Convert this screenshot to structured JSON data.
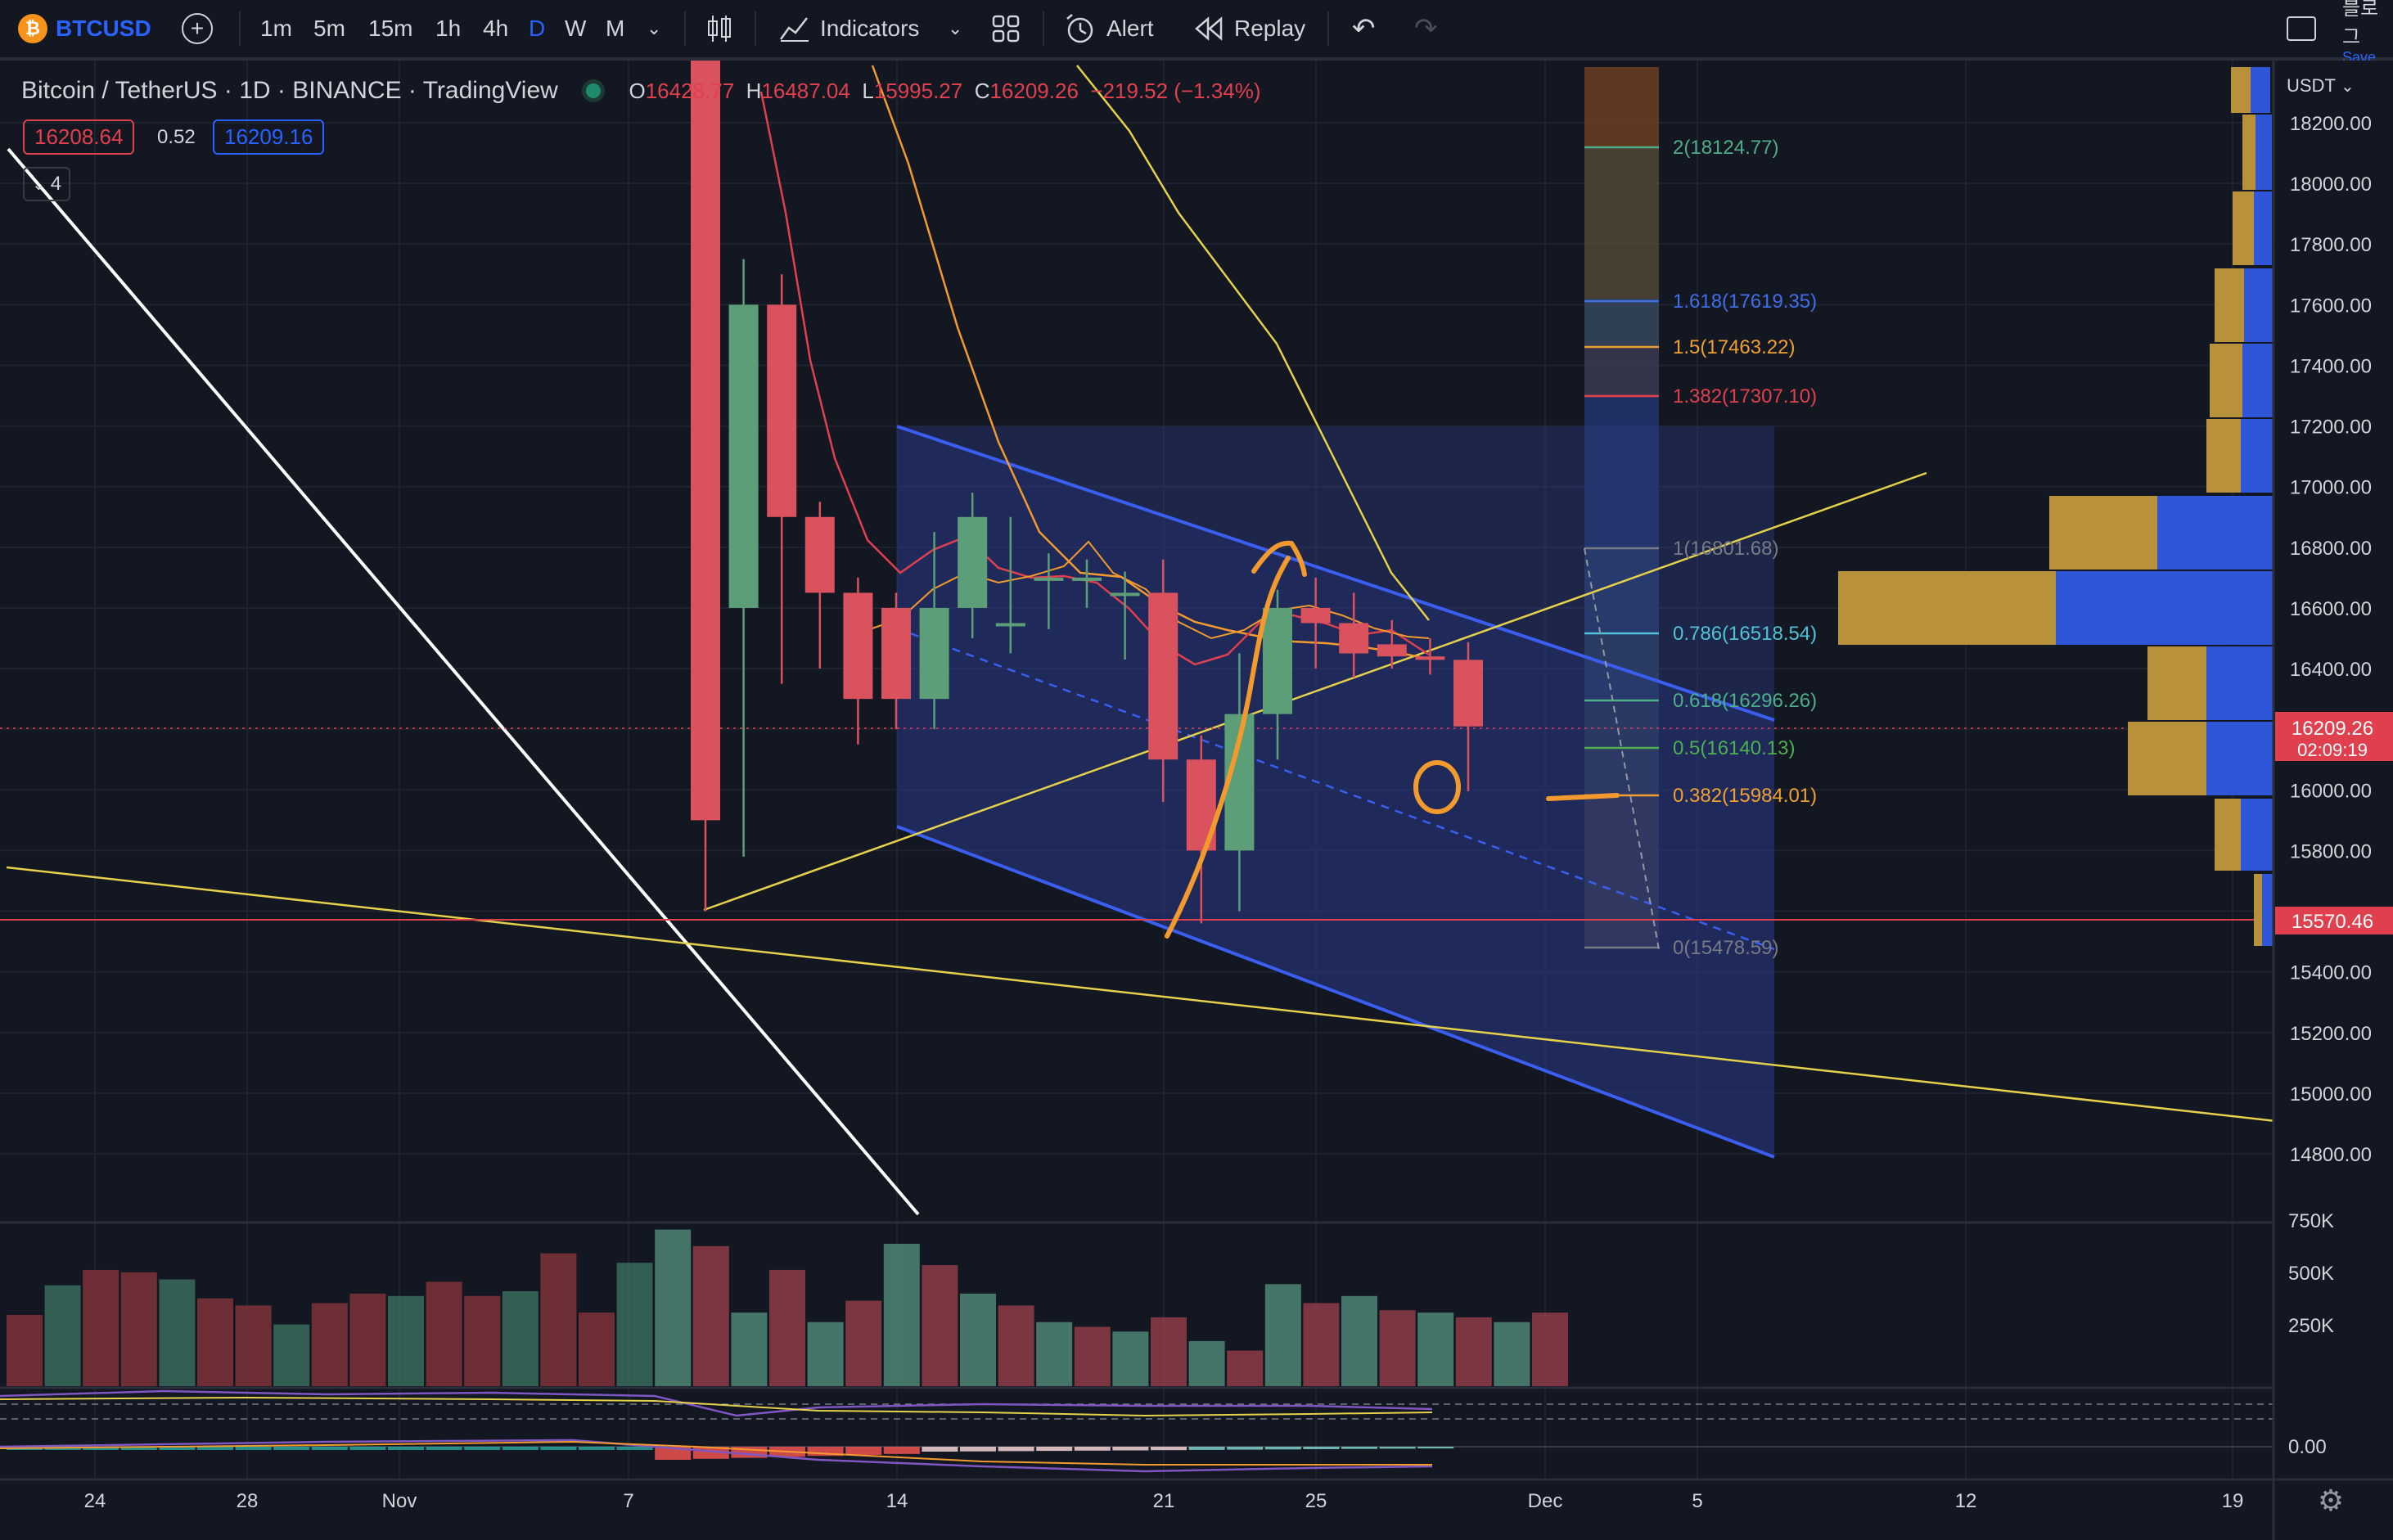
{
  "toolbar": {
    "symbol": "BTCUSD",
    "intervals": [
      "1m",
      "5m",
      "15m",
      "1h",
      "4h",
      "D",
      "W",
      "M"
    ],
    "active_interval": "D",
    "indicators_label": "Indicators",
    "alert_label": "Alert",
    "replay_label": "Replay",
    "right_text": "블로그",
    "right_subtext": "Save"
  },
  "legend": {
    "title": "Bitcoin / TetherUS · 1D · BINANCE · TradingView",
    "o_label": "O",
    "o_value": "16428.77",
    "h_label": "H",
    "h_value": "16487.04",
    "l_label": "L",
    "l_value": "15995.27",
    "c_label": "C",
    "c_value": "16209.26",
    "change": "−219.52 (−1.34%)",
    "bid": "16208.64",
    "spread": "0.52",
    "ask": "16209.16",
    "collapse_count": "4"
  },
  "price_axis": {
    "currency": "USDT",
    "ticks": [
      "18200.00",
      "18000.00",
      "17800.00",
      "17600.00",
      "17400.00",
      "17200.00",
      "17000.00",
      "16800.00",
      "16600.00",
      "16400.00",
      "16000.00",
      "15800.00",
      "15400.00",
      "15200.00",
      "15000.00",
      "14800.00"
    ],
    "current_price": "16209.26",
    "countdown": "02:09:19",
    "line_price": "15570.46",
    "volume_ticks": [
      "750K",
      "500K",
      "250K"
    ],
    "osc_tick": "0.00"
  },
  "time_axis": {
    "labels": [
      "24",
      "28",
      "Nov",
      "7",
      "14",
      "21",
      "25",
      "Dec",
      "5",
      "12",
      "19"
    ]
  },
  "fib": {
    "levels": [
      {
        "text": "2(18124.77)",
        "color": "#4caf8a"
      },
      {
        "text": "1.618(17619.35)",
        "color": "#3f6ee8"
      },
      {
        "text": "1.5(17463.22)",
        "color": "#f0a030"
      },
      {
        "text": "1.382(17307.10)",
        "color": "#e0404e"
      },
      {
        "text": "1(16801.68)",
        "color": "#787b86"
      },
      {
        "text": "0.786(16518.54)",
        "color": "#4fc3d7"
      },
      {
        "text": "0.618(16296.26)",
        "color": "#4caf8a"
      },
      {
        "text": "0.5(16140.13)",
        "color": "#4caf50"
      },
      {
        "text": "0.382(15984.01)",
        "color": "#f0a030"
      },
      {
        "text": "0(15478.59)",
        "color": "#787b86"
      }
    ]
  },
  "colors": {
    "up": "#5b9e78",
    "down": "#d9525e",
    "channel": "#3058e0",
    "trend": "#e6d14a",
    "drawing": "#f29a2e",
    "background": "#131722"
  },
  "chart_data": {
    "type": "candlestick",
    "symbol": "BTCUSD",
    "interval": "1D",
    "x": [
      "Nov 8",
      "Nov 9",
      "Nov 10",
      "Nov 11",
      "Nov 12",
      "Nov 13",
      "Nov 14",
      "Nov 15",
      "Nov 16",
      "Nov 17",
      "Nov 18",
      "Nov 19",
      "Nov 20",
      "Nov 21",
      "Nov 22",
      "Nov 23",
      "Nov 24",
      "Nov 25",
      "Nov 26",
      "Nov 27",
      "Nov 28"
    ],
    "open": [
      19900,
      16600,
      17600,
      16900,
      16650,
      16600,
      16300,
      16600,
      16550,
      16700,
      16700,
      16650,
      16650,
      16100,
      15800,
      16250,
      16600,
      16550,
      16480,
      16440,
      16428.77
    ],
    "close": [
      15900,
      17600,
      16900,
      16650,
      16300,
      16300,
      16600,
      16900,
      16550,
      16700,
      16700,
      16650,
      16100,
      15800,
      16250,
      16600,
      16550,
      16450,
      16440,
      16428.77,
      16209.26
    ],
    "volume": [
      720,
      690,
      420,
      280,
      270,
      230,
      270,
      230,
      160,
      150,
      100,
      90,
      240,
      200,
      180,
      200,
      140,
      130,
      130,
      120,
      170
    ],
    "volume_ylim": [
      0,
      800
    ],
    "ylim": [
      14700,
      18300
    ],
    "current_price": 16209.26,
    "horizontal_line": 15570.46
  }
}
